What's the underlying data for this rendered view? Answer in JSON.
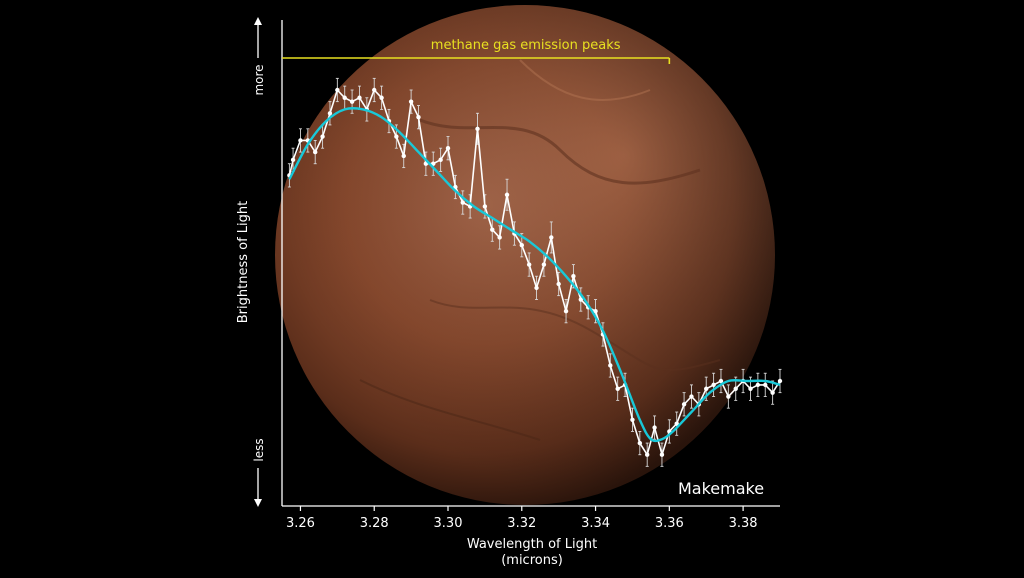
{
  "chart_data": {
    "type": "line",
    "title": "",
    "xlabel_line1": "Wavelength of Light",
    "xlabel_line2": "(microns)",
    "ylabel": "Brightness of Light",
    "ylabel_more": "more",
    "ylabel_less": "less",
    "object_label": "Makemake",
    "annotation": {
      "text": "methane gas emission peaks",
      "x_start": 3.255,
      "x_end": 3.36
    },
    "xlim": [
      3.255,
      3.39
    ],
    "ylim": [
      0,
      1
    ],
    "x_ticks": [
      "3.26",
      "3.28",
      "3.30",
      "3.32",
      "3.34",
      "3.36",
      "3.38"
    ],
    "y_ticks": [],
    "grid": false,
    "colors": {
      "data": "#ffffff",
      "model": "#18c8d8",
      "annotation": "#e8e020",
      "axes": "#ffffff",
      "planet": "#8a4a2c"
    },
    "series": [
      {
        "x": [
          3.257,
          3.258,
          3.26,
          3.262,
          3.264,
          3.266,
          3.268,
          3.27,
          3.272,
          3.274,
          3.276,
          3.278,
          3.28,
          3.282,
          3.284,
          3.286,
          3.288,
          3.29,
          3.292,
          3.294,
          3.296,
          3.298,
          3.3,
          3.302,
          3.304,
          3.306,
          3.308,
          3.31,
          3.312,
          3.314,
          3.316,
          3.318,
          3.32,
          3.322,
          3.324,
          3.326,
          3.328,
          3.33,
          3.332,
          3.334,
          3.336,
          3.338,
          3.34,
          3.342,
          3.344,
          3.346,
          3.348,
          3.35,
          3.352,
          3.354,
          3.356,
          3.358,
          3.36,
          3.362,
          3.364,
          3.366,
          3.368,
          3.37,
          3.372,
          3.374,
          3.376,
          3.378,
          3.38,
          3.382,
          3.384,
          3.386,
          3.388,
          3.39
        ],
        "values": [
          0.78,
          0.82,
          0.87,
          0.87,
          0.84,
          0.88,
          0.94,
          1.0,
          0.98,
          0.97,
          0.98,
          0.95,
          1.0,
          0.98,
          0.92,
          0.88,
          0.83,
          0.97,
          0.93,
          0.81,
          0.81,
          0.82,
          0.85,
          0.75,
          0.71,
          0.7,
          0.9,
          0.7,
          0.64,
          0.62,
          0.73,
          0.63,
          0.6,
          0.55,
          0.49,
          0.55,
          0.62,
          0.5,
          0.43,
          0.52,
          0.46,
          0.44,
          0.43,
          0.37,
          0.29,
          0.23,
          0.24,
          0.15,
          0.09,
          0.06,
          0.13,
          0.06,
          0.12,
          0.14,
          0.19,
          0.21,
          0.19,
          0.23,
          0.24,
          0.25,
          0.21,
          0.23,
          0.25,
          0.23,
          0.24,
          0.24,
          0.22,
          0.25
        ],
        "errors": [
          0.03,
          0.03,
          0.03,
          0.03,
          0.03,
          0.03,
          0.03,
          0.03,
          0.03,
          0.03,
          0.03,
          0.03,
          0.03,
          0.03,
          0.03,
          0.03,
          0.03,
          0.03,
          0.03,
          0.03,
          0.03,
          0.03,
          0.03,
          0.03,
          0.03,
          0.03,
          0.04,
          0.03,
          0.03,
          0.03,
          0.04,
          0.03,
          0.03,
          0.03,
          0.03,
          0.03,
          0.04,
          0.03,
          0.03,
          0.03,
          0.03,
          0.03,
          0.03,
          0.03,
          0.03,
          0.03,
          0.03,
          0.03,
          0.03,
          0.03,
          0.03,
          0.03,
          0.03,
          0.03,
          0.03,
          0.03,
          0.03,
          0.03,
          0.03,
          0.03,
          0.03,
          0.03,
          0.03,
          0.03,
          0.03,
          0.03,
          0.03,
          0.03
        ]
      },
      {
        "x": [
          3.257,
          3.262,
          3.267,
          3.272,
          3.277,
          3.282,
          3.287,
          3.292,
          3.297,
          3.302,
          3.307,
          3.312,
          3.317,
          3.322,
          3.327,
          3.332,
          3.337,
          3.342,
          3.347,
          3.352,
          3.355,
          3.358,
          3.361,
          3.366,
          3.371,
          3.376,
          3.381,
          3.386,
          3.39
        ],
        "values": [
          0.77,
          0.86,
          0.92,
          0.95,
          0.95,
          0.93,
          0.89,
          0.84,
          0.79,
          0.74,
          0.7,
          0.67,
          0.64,
          0.61,
          0.57,
          0.52,
          0.46,
          0.38,
          0.27,
          0.15,
          0.1,
          0.1,
          0.12,
          0.17,
          0.22,
          0.25,
          0.25,
          0.25,
          0.24
        ]
      }
    ]
  }
}
